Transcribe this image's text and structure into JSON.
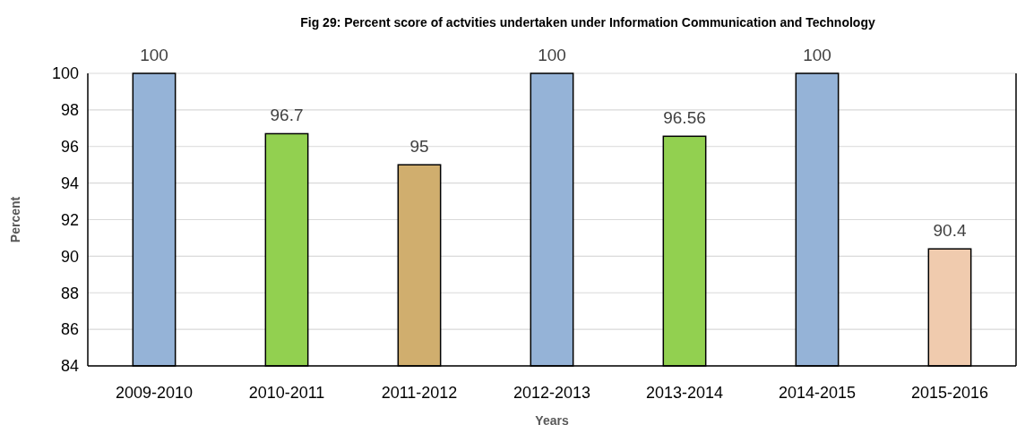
{
  "chart_data": {
    "type": "bar",
    "title": "Fig 29: Percent score of actvities undertaken under Information Communication and Technology",
    "xlabel": "Years",
    "ylabel": "Percent",
    "categories": [
      "2009-2010",
      "2010-2011",
      "2011-2012",
      "2012-2013",
      "2013-2014",
      "2014-2015",
      "2015-2016"
    ],
    "values": [
      100,
      96.7,
      95,
      100,
      96.56,
      100,
      90.4
    ],
    "colors": [
      "#95b3d7",
      "#92d050",
      "#d0ae6e",
      "#95b3d7",
      "#92d050",
      "#95b3d7",
      "#f0cbae"
    ],
    "ylim": [
      84,
      100
    ],
    "yticks": [
      84,
      86,
      88,
      90,
      92,
      94,
      96,
      98,
      100
    ],
    "grid": "y",
    "data_labels": true
  }
}
